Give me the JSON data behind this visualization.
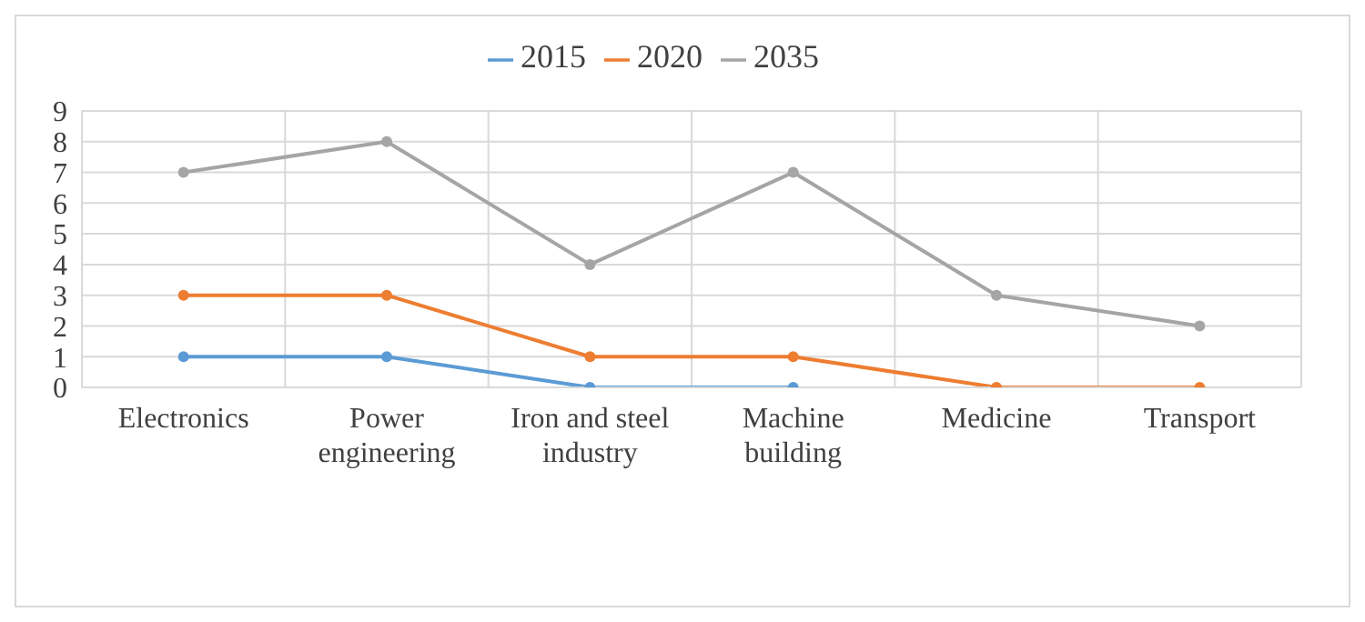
{
  "chart_data": {
    "type": "line",
    "categories": [
      "Electronics",
      "Power engineering",
      "Iron and steel industry",
      "Machine building",
      "Medicine",
      "Transport"
    ],
    "series": [
      {
        "name": "2015",
        "color": "#5b9bd5",
        "values": [
          1,
          1,
          0,
          0,
          null,
          null
        ]
      },
      {
        "name": "2020",
        "color": "#ed7d31",
        "values": [
          3,
          3,
          1,
          1,
          0,
          0
        ]
      },
      {
        "name": "2035",
        "color": "#a5a5a5",
        "values": [
          7,
          8,
          4,
          7,
          3,
          2
        ]
      }
    ],
    "ylim": [
      0,
      9
    ],
    "yticks": [
      0,
      1,
      2,
      3,
      4,
      5,
      6,
      7,
      8,
      9
    ],
    "grid": true,
    "legend": "top",
    "marker": "circle",
    "line_style": "solid"
  }
}
